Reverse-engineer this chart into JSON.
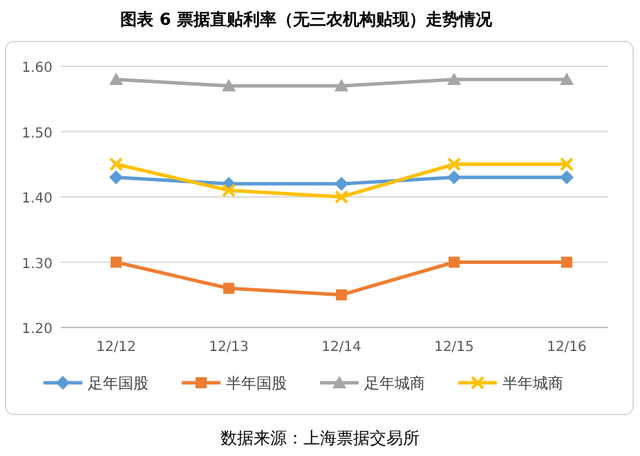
{
  "chart_data": {
    "type": "line",
    "title": "图表 6  票据直贴利率（无三农机构贴现）走势情况",
    "categories": [
      "12/12",
      "12/13",
      "12/14",
      "12/15",
      "12/16"
    ],
    "series": [
      {
        "name": "足年国股",
        "color": "#5b9bd5",
        "marker": "diamond",
        "values": [
          1.43,
          1.42,
          1.42,
          1.43,
          1.43
        ]
      },
      {
        "name": "半年国股",
        "color": "#ed7d31",
        "marker": "square",
        "values": [
          1.3,
          1.26,
          1.25,
          1.3,
          1.3
        ]
      },
      {
        "name": "足年城商",
        "color": "#a5a5a5",
        "marker": "triangle",
        "values": [
          1.58,
          1.57,
          1.57,
          1.58,
          1.58
        ]
      },
      {
        "name": "半年城商",
        "color": "#ffc000",
        "marker": "cross",
        "values": [
          1.45,
          1.41,
          1.4,
          1.45,
          1.45
        ]
      }
    ],
    "ylim": [
      1.2,
      1.6
    ],
    "yticks": [
      {
        "value": 1.2,
        "label": "1.20"
      },
      {
        "value": 1.3,
        "label": "1.30"
      },
      {
        "value": 1.4,
        "label": "1.40"
      },
      {
        "value": 1.5,
        "label": "1.50"
      },
      {
        "value": 1.6,
        "label": "1.60"
      }
    ],
    "grid": "y",
    "legend": "bottom",
    "annotations": [
      "数据来源：上海票据交易所"
    ]
  }
}
